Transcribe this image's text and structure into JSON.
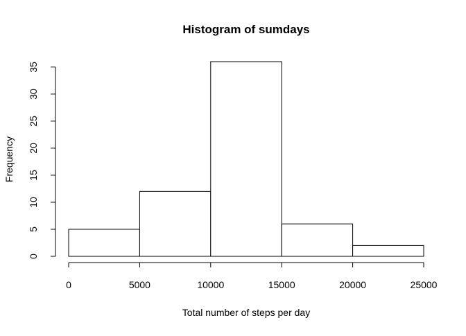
{
  "chart_data": {
    "type": "bar",
    "title": "Histogram of sumdays",
    "xlabel": "Total number of steps per day",
    "ylabel": "Frequency",
    "bins": [
      {
        "start": 0,
        "end": 5000,
        "count": 5
      },
      {
        "start": 5000,
        "end": 10000,
        "count": 12
      },
      {
        "start": 10000,
        "end": 15000,
        "count": 36
      },
      {
        "start": 15000,
        "end": 20000,
        "count": 6
      },
      {
        "start": 20000,
        "end": 25000,
        "count": 2
      }
    ],
    "xlim": [
      0,
      25000
    ],
    "ylim": [
      0,
      36
    ],
    "x_ticks": [
      0,
      5000,
      10000,
      15000,
      20000,
      25000
    ],
    "y_ticks": [
      0,
      5,
      10,
      15,
      20,
      25,
      30,
      35
    ],
    "grid": false,
    "colors": {
      "bar_fill": "#ffffff",
      "bar_stroke": "#000000",
      "axis": "#000000",
      "background": "#ffffff"
    }
  }
}
